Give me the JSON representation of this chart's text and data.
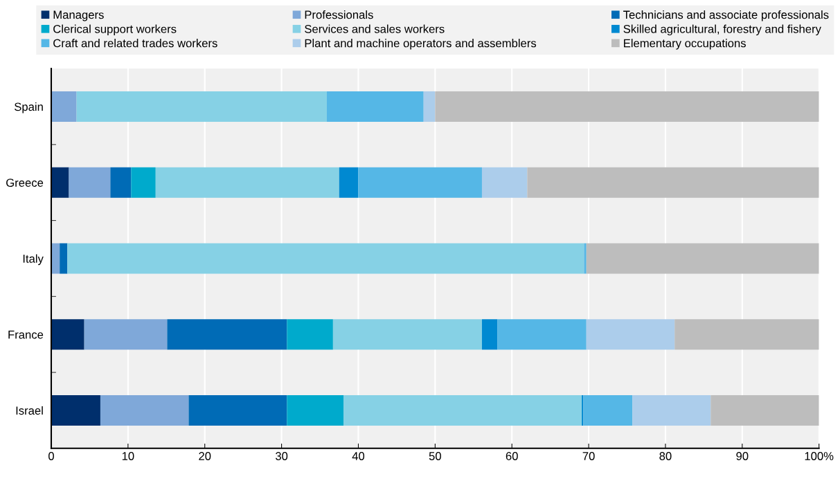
{
  "chart_data": {
    "type": "bar",
    "orientation": "horizontal",
    "stacked": true,
    "categories": [
      "Spain",
      "Greece",
      "Italy",
      "France",
      "Israel"
    ],
    "series": [
      {
        "name": "Managers",
        "color": "#002f6c",
        "values": [
          0,
          2.3,
          0,
          4.3,
          6.4
        ]
      },
      {
        "name": "Professionals",
        "color": "#7fa8d9",
        "values": [
          3.3,
          5.4,
          1.1,
          10.8,
          11.5
        ]
      },
      {
        "name": "Technicians and associate professionals",
        "color": "#006bb6",
        "values": [
          0,
          2.7,
          1.0,
          15.6,
          12.8
        ]
      },
      {
        "name": "Clerical support workers",
        "color": "#00aacc",
        "values": [
          0,
          3.2,
          0,
          6.0,
          7.4
        ]
      },
      {
        "name": "Services and sales workers",
        "color": "#86d1e5",
        "values": [
          32.6,
          23.9,
          67.3,
          19.4,
          31.0
        ]
      },
      {
        "name": "Skilled agricultural, forestry and fishery",
        "color": "#0089d1",
        "values": [
          0,
          2.5,
          0,
          2.0,
          0.2
        ]
      },
      {
        "name": "Craft and related trades workers",
        "color": "#55b7e6",
        "values": [
          12.6,
          16.1,
          0.3,
          11.6,
          6.4
        ]
      },
      {
        "name": "Plant and machine operators and assemblers",
        "color": "#accdeb",
        "values": [
          1.5,
          5.9,
          0,
          11.5,
          10.2
        ]
      },
      {
        "name": "Elementary occupations",
        "color": "#bdbdbd",
        "values": [
          50.0,
          38.0,
          30.3,
          18.8,
          14.1
        ]
      }
    ],
    "xlim": [
      0,
      100
    ],
    "xticks": [
      0,
      10,
      20,
      30,
      40,
      50,
      60,
      70,
      80,
      90,
      {
        "value": 100,
        "label": "100%"
      }
    ],
    "grid": "x",
    "legend": "top"
  }
}
